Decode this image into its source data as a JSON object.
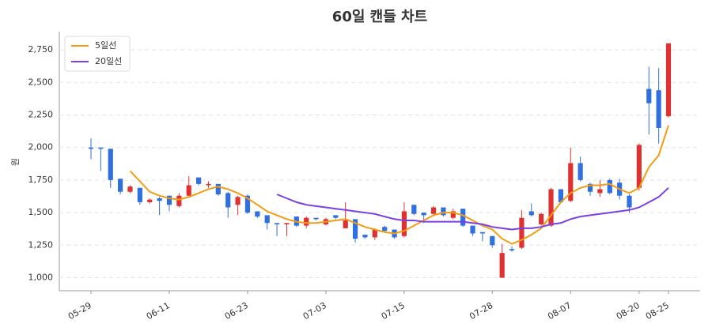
{
  "chart_data": {
    "type": "candlestick",
    "title": "60일 캔들 차트",
    "y_label": "원",
    "categories": [
      "05-29",
      null,
      null,
      null,
      null,
      null,
      null,
      null,
      "06-11",
      null,
      null,
      null,
      null,
      null,
      null,
      null,
      "06-23",
      null,
      null,
      null,
      null,
      null,
      null,
      null,
      "07-03",
      null,
      null,
      null,
      null,
      null,
      null,
      null,
      "07-15",
      null,
      null,
      null,
      null,
      null,
      null,
      null,
      null,
      "07-28",
      null,
      null,
      null,
      null,
      null,
      null,
      null,
      "08-07",
      null,
      null,
      null,
      null,
      null,
      null,
      "08-20",
      null,
      null,
      "08-25"
    ],
    "open": [
      2000,
      2000,
      1990,
      1760,
      1660,
      1690,
      1580,
      1610,
      1630,
      1550,
      1630,
      1770,
      1710,
      1720,
      1650,
      1560,
      1630,
      1510,
      1480,
      1420,
      1410,
      1470,
      1400,
      1460,
      1410,
      1480,
      1380,
      1450,
      1330,
      1310,
      1390,
      1370,
      1320,
      1560,
      1500,
      1490,
      1540,
      1460,
      1530,
      1400,
      1350,
      1320,
      1000,
      1220,
      1230,
      1510,
      1410,
      1400,
      1680,
      1590,
      1880,
      1720,
      1650,
      1750,
      1730,
      1630,
      1690,
      2450,
      2440,
      2240
    ],
    "high": [
      2070,
      2000,
      1990,
      1760,
      1710,
      1690,
      1610,
      1620,
      1630,
      1650,
      1780,
      1770,
      1740,
      1720,
      1660,
      1630,
      1640,
      1510,
      1480,
      1420,
      1420,
      1470,
      1470,
      1460,
      1460,
      1480,
      1580,
      1450,
      1330,
      1380,
      1400,
      1370,
      1580,
      1560,
      1500,
      1550,
      1540,
      1530,
      1530,
      1400,
      1350,
      1320,
      1260,
      1240,
      1520,
      1570,
      1500,
      1690,
      1680,
      2000,
      1930,
      1730,
      1750,
      1760,
      1760,
      1640,
      2030,
      2620,
      2610,
      2800
    ],
    "low": [
      1910,
      1820,
      1690,
      1640,
      1650,
      1560,
      1570,
      1480,
      1510,
      1540,
      1620,
      1710,
      1690,
      1630,
      1460,
      1480,
      1490,
      1460,
      1370,
      1320,
      1320,
      1390,
      1380,
      1440,
      1400,
      1450,
      1380,
      1270,
      1300,
      1290,
      1350,
      1300,
      1310,
      1480,
      1420,
      1480,
      1470,
      1450,
      1390,
      1320,
      1280,
      1230,
      1000,
      1200,
      1220,
      1470,
      1400,
      1390,
      1570,
      1580,
      1740,
      1630,
      1620,
      1640,
      1600,
      1500,
      1670,
      2100,
      2030,
      2230
    ],
    "close": [
      1990,
      1990,
      1750,
      1660,
      1700,
      1580,
      1600,
      1590,
      1560,
      1630,
      1710,
      1720,
      1720,
      1640,
      1540,
      1620,
      1500,
      1470,
      1420,
      1410,
      1420,
      1400,
      1460,
      1450,
      1450,
      1460,
      1440,
      1300,
      1310,
      1370,
      1360,
      1310,
      1510,
      1490,
      1480,
      1540,
      1480,
      1510,
      1400,
      1340,
      1340,
      1250,
      1190,
      1210,
      1460,
      1480,
      1490,
      1680,
      1580,
      1880,
      1750,
      1660,
      1680,
      1650,
      1630,
      1540,
      2020,
      2340,
      2150,
      2800
    ],
    "up_color": "#e03131",
    "down_color": "#2f6fe0",
    "series": [
      {
        "name": "5일선",
        "color": "#f39c12",
        "values": [
          null,
          null,
          null,
          null,
          1820,
          1740,
          1660,
          1630,
          1610,
          1600,
          1620,
          1650,
          1680,
          1700,
          1680,
          1650,
          1610,
          1560,
          1510,
          1480,
          1450,
          1430,
          1420,
          1420,
          1430,
          1440,
          1450,
          1420,
          1390,
          1370,
          1350,
          1340,
          1360,
          1400,
          1440,
          1480,
          1500,
          1500,
          1480,
          1440,
          1400,
          1370,
          1300,
          1260,
          1290,
          1330,
          1380,
          1480,
          1580,
          1650,
          1690,
          1710,
          1710,
          1720,
          1680,
          1650,
          1690,
          1850,
          1940,
          2170
        ]
      },
      {
        "name": "20일선",
        "color": "#7b3fe4",
        "values": [
          null,
          null,
          null,
          null,
          null,
          null,
          null,
          null,
          null,
          null,
          null,
          null,
          null,
          null,
          null,
          null,
          null,
          null,
          null,
          1640,
          1610,
          1580,
          1560,
          1550,
          1540,
          1530,
          1520,
          1510,
          1500,
          1490,
          1470,
          1450,
          1440,
          1440,
          1430,
          1430,
          1430,
          1430,
          1430,
          1420,
          1410,
          1390,
          1380,
          1370,
          1380,
          1380,
          1390,
          1410,
          1420,
          1450,
          1470,
          1480,
          1490,
          1500,
          1510,
          1520,
          1540,
          1580,
          1620,
          1690
        ]
      }
    ],
    "ylim": [
      900,
      2890
    ],
    "yticks": [
      {
        "value": 1000,
        "label": "1,000"
      },
      {
        "value": 1250,
        "label": "1,250"
      },
      {
        "value": 1500,
        "label": "1,500"
      },
      {
        "value": 1750,
        "label": "1,750"
      },
      {
        "value": 2000,
        "label": "2,000"
      },
      {
        "value": 2250,
        "label": "2,250"
      },
      {
        "value": 2500,
        "label": "2,500"
      },
      {
        "value": 2750,
        "label": "2,750"
      }
    ],
    "grid": true
  }
}
